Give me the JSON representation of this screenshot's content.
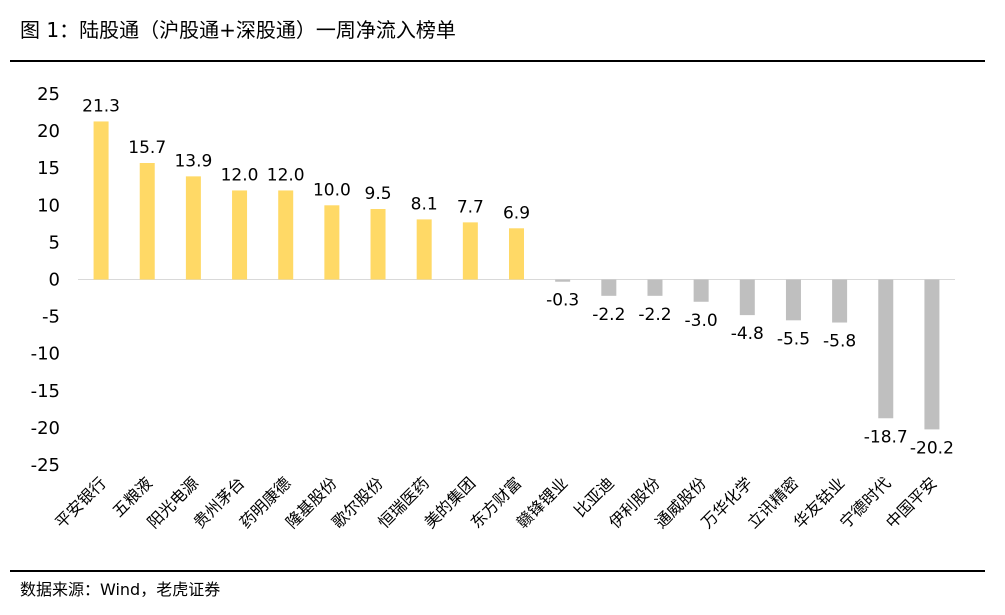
{
  "header": {
    "title": "图 1：陆股通（沪股通+深股通）一周净流入榜单"
  },
  "footer": {
    "source": "数据来源：Wind，老虎证券"
  },
  "colors": {
    "positive": "#FFD966",
    "negative": "#BFBFBF",
    "rule": "#000000"
  },
  "chart_data": {
    "type": "bar",
    "title": "",
    "xlabel": "",
    "ylabel": "",
    "ylim": [
      -25,
      25
    ],
    "yticks": [
      25,
      20,
      15,
      10,
      5,
      0,
      -5,
      -10,
      -15,
      -20,
      -25
    ],
    "grid": false,
    "legend": "none",
    "categories": [
      "平安银行",
      "五粮液",
      "阳光电源",
      "贵州茅台",
      "药明康德",
      "隆基股份",
      "歌尔股份",
      "恒瑞医药",
      "美的集团",
      "东方财富",
      "赣锋锂业",
      "比亚迪",
      "伊利股份",
      "通威股份",
      "万华化学",
      "立讯精密",
      "华友钴业",
      "宁德时代",
      "中国平安"
    ],
    "values": [
      21.3,
      15.7,
      13.9,
      12.0,
      12.0,
      10.0,
      9.5,
      8.1,
      7.7,
      6.9,
      -0.3,
      -2.2,
      -2.2,
      -3.0,
      -4.8,
      -5.5,
      -5.8,
      -18.7,
      -20.2
    ],
    "labels": [
      "21.3",
      "15.7",
      "13.9",
      "12.0",
      "12.0",
      "10.0",
      "9.5",
      "8.1",
      "7.7",
      "6.9",
      "-0.3",
      "-2.2",
      "-2.2",
      "-3.0",
      "-4.8",
      "-5.5",
      "-5.8",
      "-18.7",
      "-20.2"
    ]
  }
}
